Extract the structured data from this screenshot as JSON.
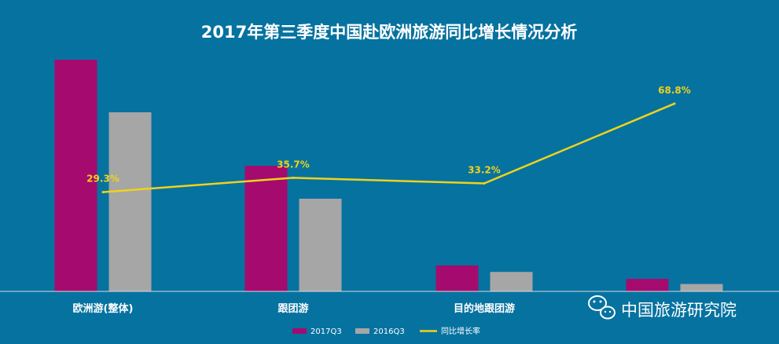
{
  "chart_data": {
    "type": "bar",
    "title": "2017年第三季度中国赴欧洲旅游同比增长情况分析",
    "categories": [
      "欧洲游(整体)",
      "跟团游",
      "目的地跟团游",
      ""
    ],
    "series": [
      {
        "name": "2017Q3",
        "values": [
          100,
          54.2,
          11.2,
          5.4
        ],
        "color": "#a50b6e",
        "kind": "bar"
      },
      {
        "name": "2016Q3",
        "values": [
          77.3,
          40.0,
          8.4,
          3.2
        ],
        "color": "#a6a6a6",
        "kind": "bar"
      },
      {
        "name": "同比增长率",
        "values": [
          29.3,
          35.7,
          33.2,
          68.8
        ],
        "labels": [
          "29.3%",
          "35.7%",
          "33.2%",
          "68.8%"
        ],
        "color": "#f0d21a",
        "kind": "line"
      }
    ],
    "bar_ylim": [
      0,
      100
    ],
    "line_ylim": [
      -15,
      80
    ],
    "legend_position": "bottom",
    "grid": false
  },
  "watermark": {
    "text": "中国旅游研究院",
    "icon": "wechat-icon"
  }
}
